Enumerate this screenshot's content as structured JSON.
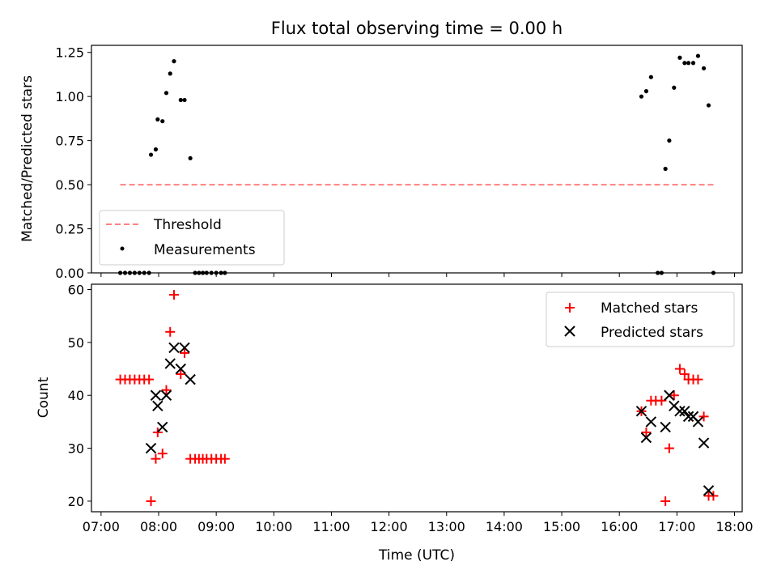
{
  "chart_data": [
    {
      "type": "scatter",
      "title": "Flux total observing time = 0.00 h",
      "xlabel": "",
      "ylabel": "Matched/Predicted stars",
      "xlim": [
        "06:50",
        "18:08"
      ],
      "ylim": [
        0,
        1.29
      ],
      "yticks": [
        "0.00",
        "0.25",
        "0.50",
        "0.75",
        "1.00",
        "1.25"
      ],
      "xticks": [
        "07:00",
        "08:00",
        "09:00",
        "10:00",
        "11:00",
        "12:00",
        "13:00",
        "14:00",
        "15:00",
        "16:00",
        "17:00",
        "18:00"
      ],
      "legend_position": "lower-left",
      "threshold": {
        "name": "Threshold",
        "color": "#ff8080",
        "style": "dashed",
        "x": [
          "07:20",
          "17:38"
        ],
        "y": 0.5
      },
      "series": [
        {
          "name": "Measurements",
          "color": "#000000",
          "marker": "dot",
          "points": [
            [
              "07:20",
              0
            ],
            [
              "07:25",
              0
            ],
            [
              "07:30",
              0
            ],
            [
              "07:35",
              0
            ],
            [
              "07:40",
              0
            ],
            [
              "07:45",
              0
            ],
            [
              "07:50",
              0
            ],
            [
              "07:52",
              0.67
            ],
            [
              "07:57",
              0.7
            ],
            [
              "07:59",
              0.87
            ],
            [
              "08:04",
              0.86
            ],
            [
              "08:08",
              1.02
            ],
            [
              "08:12",
              1.13
            ],
            [
              "08:16",
              1.2
            ],
            [
              "08:23",
              0.98
            ],
            [
              "08:27",
              0.98
            ],
            [
              "08:33",
              0.65
            ],
            [
              "08:38",
              0
            ],
            [
              "08:42",
              0
            ],
            [
              "08:46",
              0
            ],
            [
              "08:50",
              0
            ],
            [
              "08:55",
              0
            ],
            [
              "09:00",
              0
            ],
            [
              "09:05",
              0
            ],
            [
              "09:09",
              0
            ],
            [
              "16:23",
              1.0
            ],
            [
              "16:28",
              1.03
            ],
            [
              "16:33",
              1.11
            ],
            [
              "16:40",
              0
            ],
            [
              "16:44",
              0
            ],
            [
              "16:48",
              0.59
            ],
            [
              "16:52",
              0.75
            ],
            [
              "16:57",
              1.05
            ],
            [
              "17:03",
              1.22
            ],
            [
              "17:08",
              1.19
            ],
            [
              "17:12",
              1.19
            ],
            [
              "17:17",
              1.19
            ],
            [
              "17:22",
              1.23
            ],
            [
              "17:28",
              1.16
            ],
            [
              "17:33",
              0.95
            ],
            [
              "17:38",
              0
            ]
          ]
        }
      ]
    },
    {
      "type": "scatter",
      "title": "",
      "xlabel": "Time (UTC)",
      "ylabel": "Count",
      "xlim": [
        "06:50",
        "18:08"
      ],
      "ylim": [
        18,
        61
      ],
      "yticks": [
        "20",
        "30",
        "40",
        "50",
        "60"
      ],
      "xticks": [
        "07:00",
        "08:00",
        "09:00",
        "10:00",
        "11:00",
        "12:00",
        "13:00",
        "14:00",
        "15:00",
        "16:00",
        "17:00",
        "18:00"
      ],
      "legend_position": "upper-right",
      "series": [
        {
          "name": "Matched stars",
          "color": "#ff0000",
          "marker": "plus",
          "points": [
            [
              "07:20",
              43
            ],
            [
              "07:25",
              43
            ],
            [
              "07:30",
              43
            ],
            [
              "07:35",
              43
            ],
            [
              "07:40",
              43
            ],
            [
              "07:45",
              43
            ],
            [
              "07:50",
              43
            ],
            [
              "07:52",
              20
            ],
            [
              "07:57",
              28
            ],
            [
              "07:59",
              33
            ],
            [
              "08:04",
              29
            ],
            [
              "08:08",
              41
            ],
            [
              "08:12",
              52
            ],
            [
              "08:16",
              59
            ],
            [
              "08:23",
              44
            ],
            [
              "08:27",
              48
            ],
            [
              "08:33",
              28
            ],
            [
              "08:38",
              28
            ],
            [
              "08:42",
              28
            ],
            [
              "08:46",
              28
            ],
            [
              "08:50",
              28
            ],
            [
              "08:55",
              28
            ],
            [
              "09:00",
              28
            ],
            [
              "09:05",
              28
            ],
            [
              "09:09",
              28
            ],
            [
              "16:23",
              37
            ],
            [
              "16:28",
              33
            ],
            [
              "16:33",
              39
            ],
            [
              "16:38",
              39
            ],
            [
              "16:44",
              39
            ],
            [
              "16:48",
              20
            ],
            [
              "16:52",
              30
            ],
            [
              "16:57",
              40
            ],
            [
              "17:03",
              45
            ],
            [
              "17:08",
              44
            ],
            [
              "17:12",
              43
            ],
            [
              "17:17",
              43
            ],
            [
              "17:22",
              43
            ],
            [
              "17:28",
              36
            ],
            [
              "17:33",
              21
            ],
            [
              "17:38",
              21
            ]
          ]
        },
        {
          "name": "Predicted stars",
          "color": "#000000",
          "marker": "x",
          "points": [
            [
              "07:52",
              30
            ],
            [
              "07:57",
              40
            ],
            [
              "07:59",
              38
            ],
            [
              "08:04",
              34
            ],
            [
              "08:08",
              40
            ],
            [
              "08:12",
              46
            ],
            [
              "08:16",
              49
            ],
            [
              "08:23",
              45
            ],
            [
              "08:27",
              49
            ],
            [
              "08:33",
              43
            ],
            [
              "16:23",
              37
            ],
            [
              "16:28",
              32
            ],
            [
              "16:33",
              35
            ],
            [
              "16:48",
              34
            ],
            [
              "16:52",
              40
            ],
            [
              "16:57",
              38
            ],
            [
              "17:03",
              37
            ],
            [
              "17:08",
              37
            ],
            [
              "17:12",
              36
            ],
            [
              "17:17",
              36
            ],
            [
              "17:22",
              35
            ],
            [
              "17:28",
              31
            ],
            [
              "17:33",
              22
            ]
          ]
        }
      ]
    }
  ]
}
